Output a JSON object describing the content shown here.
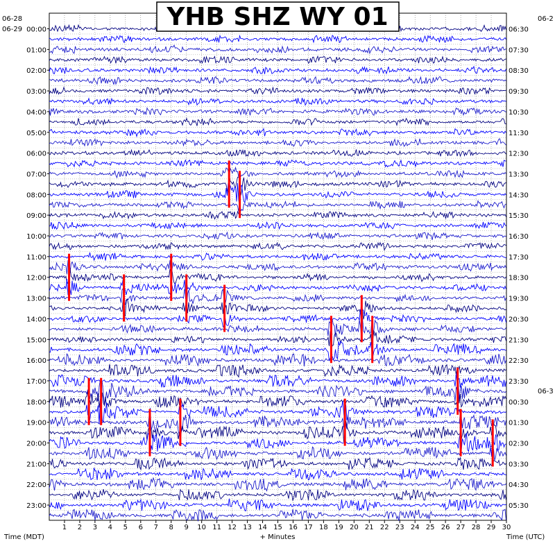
{
  "chart_data": {
    "type": "line",
    "title": "YHB SHZ WY 01",
    "xlabel": "+ Minutes",
    "left_axis_label": "Time (MDT)",
    "right_axis_label": "Time (UTC)",
    "xlim": [
      0,
      30
    ],
    "x_ticks": [
      "1",
      "2",
      "3",
      "4",
      "5",
      "6",
      "7",
      "8",
      "9",
      "10",
      "11",
      "12",
      "13",
      "14",
      "15",
      "16",
      "17",
      "18",
      "19",
      "20",
      "21",
      "22",
      "23",
      "24",
      "25",
      "26",
      "27",
      "28",
      "29",
      "30"
    ],
    "left_date_start": "06-28",
    "left_date_second": "06-29",
    "right_date_start": "06-2",
    "right_date_next": "06-3",
    "left_hour_labels": [
      "00:00",
      "01:00",
      "02:00",
      "03:00",
      "04:00",
      "05:00",
      "06:00",
      "07:00",
      "08:00",
      "09:00",
      "10:00",
      "11:00",
      "12:00",
      "13:00",
      "14:00",
      "15:00",
      "16:00",
      "17:00",
      "18:00",
      "19:00",
      "20:00",
      "21:00",
      "22:00",
      "23:00"
    ],
    "right_hour_labels": [
      "06:30",
      "07:30",
      "08:30",
      "09:30",
      "10:30",
      "11:30",
      "12:30",
      "13:30",
      "14:30",
      "15:30",
      "16:30",
      "17:30",
      "18:30",
      "19:30",
      "20:30",
      "21:30",
      "22:30",
      "23:30",
      "00:30",
      "01:30",
      "02:30",
      "03:30",
      "04:30",
      "05:30"
    ],
    "trace_colors": [
      "#000080",
      "#0000ff",
      "#1a1acc"
    ],
    "event_color": "#ff0000",
    "grid": true,
    "traces_per_hour": 2,
    "events": [
      {
        "hour": 7.5,
        "minute": 11.8
      },
      {
        "hour": 8.0,
        "minute": 12.5
      },
      {
        "hour": 12.0,
        "minute": 1.3
      },
      {
        "hour": 12.0,
        "minute": 8.0
      },
      {
        "hour": 13.0,
        "minute": 4.9
      },
      {
        "hour": 13.0,
        "minute": 9.0
      },
      {
        "hour": 13.5,
        "minute": 11.5
      },
      {
        "hour": 14.0,
        "minute": 20.5
      },
      {
        "hour": 15.0,
        "minute": 18.5
      },
      {
        "hour": 15.0,
        "minute": 21.2
      },
      {
        "hour": 17.5,
        "minute": 26.8
      },
      {
        "hour": 18.0,
        "minute": 2.6
      },
      {
        "hour": 18.0,
        "minute": 3.4
      },
      {
        "hour": 19.0,
        "minute": 8.6
      },
      {
        "hour": 19.0,
        "minute": 19.4
      },
      {
        "hour": 19.5,
        "minute": 6.6
      },
      {
        "hour": 19.5,
        "minute": 27.0
      },
      {
        "hour": 20.0,
        "minute": 29.1
      }
    ]
  }
}
